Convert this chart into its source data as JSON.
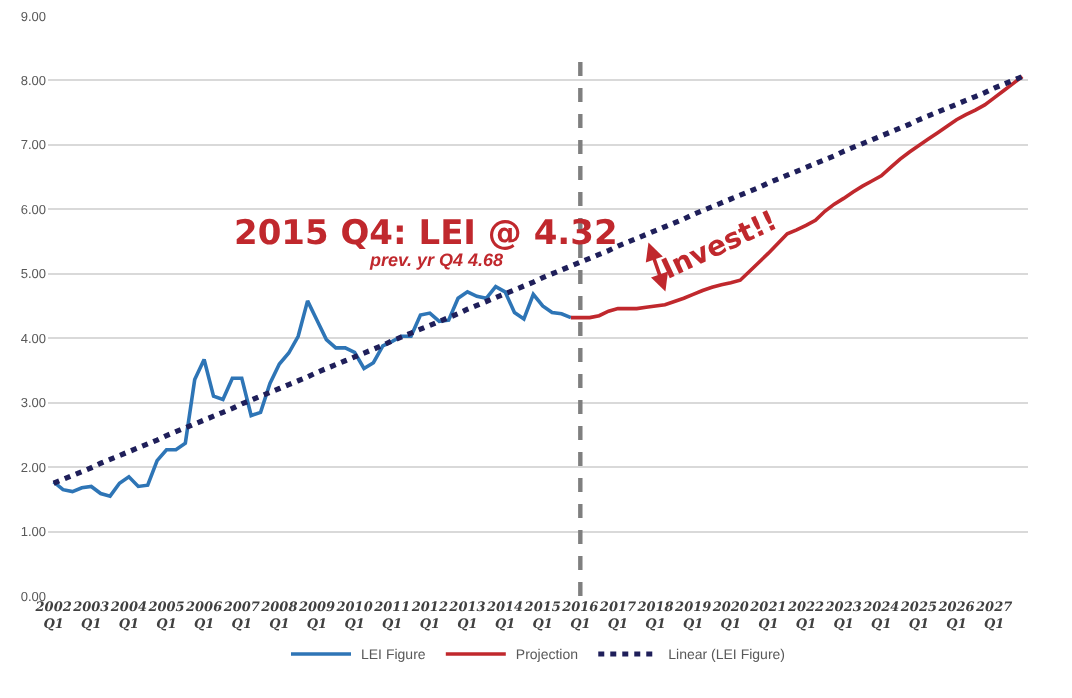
{
  "chart_data": {
    "type": "line",
    "annotations": [
      "2015 Q4: LEI @ 4.32",
      "prev. yr Q4 4.68",
      "Invest!!"
    ],
    "categories": [
      "2002\nQ1",
      null,
      null,
      null,
      "2003\nQ1",
      null,
      null,
      null,
      "2004\nQ1",
      null,
      null,
      null,
      "2005\nQ1",
      null,
      null,
      null,
      "2006\nQ1",
      null,
      null,
      null,
      "2007\nQ1",
      null,
      null,
      null,
      "2008\nQ1",
      null,
      null,
      null,
      "2009\nQ1",
      null,
      null,
      null,
      "2010\nQ1",
      null,
      null,
      null,
      "2011\nQ1",
      null,
      null,
      null,
      "2012\nQ1",
      null,
      null,
      null,
      "2013\nQ1",
      null,
      null,
      null,
      "2014\nQ1",
      null,
      null,
      null,
      "2015\nQ1",
      null,
      null,
      null,
      "2016\nQ1",
      null,
      null,
      null,
      "2017\nQ1",
      null,
      null,
      null,
      "2018\nQ1",
      null,
      null,
      null,
      "2019\nQ1",
      null,
      null,
      null,
      "2020\nQ1",
      null,
      null,
      null,
      "2021\nQ1",
      null,
      null,
      null,
      "2022\nQ1",
      null,
      null,
      null,
      "2023\nQ1",
      null,
      null,
      null,
      "2024\nQ1",
      null,
      null,
      null,
      "2025\nQ1",
      null,
      null,
      null,
      "2026\nQ1",
      null,
      null,
      null,
      "2027\nQ1",
      null,
      null,
      null
    ],
    "series": [
      {
        "name": "LEI Figure",
        "color": "#2e75b6",
        "values": [
          1.77,
          1.65,
          1.62,
          1.68,
          1.7,
          1.59,
          1.55,
          1.75,
          1.85,
          1.7,
          1.72,
          2.1,
          2.27,
          2.27,
          2.37,
          3.36,
          3.67,
          3.1,
          3.05,
          3.38,
          3.38,
          2.8,
          2.85,
          3.3,
          3.6,
          3.77,
          4.03,
          4.58,
          4.28,
          3.98,
          3.85,
          3.85,
          3.78,
          3.53,
          3.62,
          3.88,
          3.95,
          4.03,
          4.03,
          4.36,
          4.39,
          4.26,
          4.28,
          4.62,
          4.72,
          4.65,
          4.62,
          4.8,
          4.72,
          4.4,
          4.3,
          4.68,
          4.5,
          4.4,
          4.38,
          4.32,
          null,
          null,
          null,
          null,
          null,
          null,
          null,
          null,
          null,
          null,
          null,
          null,
          null,
          null,
          null,
          null,
          null,
          null,
          null,
          null,
          null,
          null,
          null,
          null,
          null,
          null,
          null,
          null,
          null,
          null,
          null,
          null,
          null,
          null,
          null,
          null,
          null,
          null,
          null,
          null,
          null,
          null,
          null,
          null,
          null,
          null,
          null,
          null
        ]
      },
      {
        "name": "Projection",
        "color": "#c0282d",
        "values": [
          null,
          null,
          null,
          null,
          null,
          null,
          null,
          null,
          null,
          null,
          null,
          null,
          null,
          null,
          null,
          null,
          null,
          null,
          null,
          null,
          null,
          null,
          null,
          null,
          null,
          null,
          null,
          null,
          null,
          null,
          null,
          null,
          null,
          null,
          null,
          null,
          null,
          null,
          null,
          null,
          null,
          null,
          null,
          null,
          null,
          null,
          null,
          null,
          null,
          null,
          null,
          null,
          null,
          null,
          null,
          4.32,
          4.32,
          4.32,
          4.35,
          4.42,
          4.46,
          4.46,
          4.46,
          4.48,
          4.5,
          4.52,
          4.57,
          4.62,
          4.68,
          4.74,
          4.79,
          4.83,
          4.86,
          4.9,
          5.04,
          5.18,
          5.32,
          5.47,
          5.62,
          5.68,
          5.75,
          5.83,
          5.97,
          6.08,
          6.17,
          6.27,
          6.36,
          6.44,
          6.52,
          6.65,
          6.78,
          6.89,
          6.99,
          7.09,
          7.19,
          7.29,
          7.39,
          7.47,
          7.54,
          7.62,
          7.73,
          7.84,
          7.95,
          8.06
        ]
      },
      {
        "name": "Linear (LEI Figure)",
        "color": "#1f1f5a",
        "line_style": "dotted",
        "values": [
          1.75,
          1.81,
          1.87,
          1.93,
          1.99,
          2.06,
          2.12,
          2.18,
          2.24,
          2.3,
          2.36,
          2.42,
          2.49,
          2.55,
          2.61,
          2.67,
          2.73,
          2.79,
          2.85,
          2.91,
          2.98,
          3.04,
          3.1,
          3.16,
          3.22,
          3.28,
          3.34,
          3.4,
          3.47,
          3.53,
          3.59,
          3.65,
          3.71,
          3.77,
          3.83,
          3.89,
          3.96,
          4.02,
          4.08,
          4.14,
          4.2,
          4.26,
          4.32,
          4.38,
          4.45,
          4.51,
          4.57,
          4.63,
          4.69,
          4.75,
          4.81,
          4.87,
          4.94,
          5,
          5.06,
          5.12,
          5.18,
          5.24,
          5.3,
          5.36,
          5.43,
          5.49,
          5.55,
          5.61,
          5.67,
          5.73,
          5.79,
          5.85,
          5.92,
          5.98,
          6.04,
          6.1,
          6.16,
          6.22,
          6.28,
          6.34,
          6.41,
          6.47,
          6.53,
          6.59,
          6.65,
          6.71,
          6.77,
          6.83,
          6.9,
          6.96,
          7.02,
          7.08,
          7.14,
          7.2,
          7.26,
          7.32,
          7.39,
          7.45,
          7.51,
          7.57,
          7.63,
          7.69,
          7.75,
          7.81,
          7.88,
          7.94,
          8,
          8.06
        ]
      }
    ],
    "ylim": [
      0,
      9
    ],
    "yticks": [
      {
        "value": 0,
        "label": "0.00"
      },
      {
        "value": 1,
        "label": "1.00"
      },
      {
        "value": 2,
        "label": "2.00"
      },
      {
        "value": 3,
        "label": "3.00"
      },
      {
        "value": 4,
        "label": "4.00"
      },
      {
        "value": 5,
        "label": "5.00"
      },
      {
        "value": 6,
        "label": "6.00"
      },
      {
        "value": 7,
        "label": "7.00"
      },
      {
        "value": 8,
        "label": "8.00"
      },
      {
        "value": 9,
        "label": "9.00"
      }
    ],
    "ref_lines": [
      {
        "axis": "x",
        "value": "2016\nQ1",
        "color": "#7f7f7f",
        "line_style": "dashed"
      }
    ],
    "grid": "y",
    "legend": "bottom",
    "marker": "none",
    "line_style": "solid"
  }
}
